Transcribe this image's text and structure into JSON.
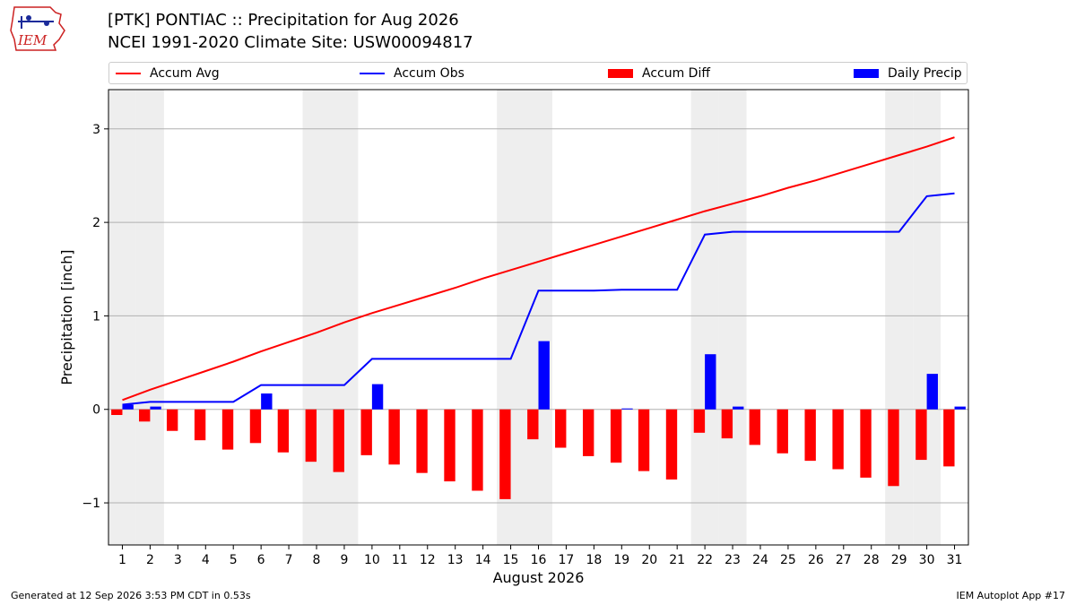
{
  "header": {
    "logo_text": "IEM",
    "title_line1": "[PTK] PONTIAC :: Precipitation for Aug 2026",
    "title_line2": "NCEI 1991-2020 Climate Site: USW00094817"
  },
  "footer": {
    "left": "Generated at 12 Sep 2026 3:53 PM CDT in 0.53s",
    "right": "IEM Autoplot App #17"
  },
  "colors": {
    "accum_avg": "#ff0000",
    "accum_obs": "#0000ff",
    "accum_diff": "#ff0000",
    "daily_precip": "#0000ff",
    "weekend_band": "#eeeeee",
    "grid": "#b0b0b0"
  },
  "chart_data": {
    "type": "bar",
    "xlabel": "August 2026",
    "ylabel": "Precipitation [inch]",
    "xlim": [
      0.5,
      31.5
    ],
    "ylim": [
      -1.45,
      3.42
    ],
    "yticks": [
      -1,
      0,
      1,
      2,
      3
    ],
    "ytick_labels": [
      "−1",
      "0",
      "1",
      "2",
      "3"
    ],
    "grid": "horizontal",
    "legend_position": "top",
    "x": [
      1,
      2,
      3,
      4,
      5,
      6,
      7,
      8,
      9,
      10,
      11,
      12,
      13,
      14,
      15,
      16,
      17,
      18,
      19,
      20,
      21,
      22,
      23,
      24,
      25,
      26,
      27,
      28,
      29,
      30,
      31
    ],
    "shaded_weekend_days": [
      1,
      2,
      8,
      9,
      15,
      16,
      22,
      23,
      29,
      30
    ],
    "series": [
      {
        "name": "Accum Avg",
        "kind": "line",
        "values": [
          0.1,
          0.21,
          0.31,
          0.41,
          0.51,
          0.62,
          0.72,
          0.82,
          0.93,
          1.03,
          1.12,
          1.21,
          1.3,
          1.4,
          1.49,
          1.58,
          1.67,
          1.76,
          1.85,
          1.94,
          2.03,
          2.12,
          2.2,
          2.28,
          2.37,
          2.45,
          2.54,
          2.63,
          2.72,
          2.81,
          2.91
        ]
      },
      {
        "name": "Accum Obs",
        "kind": "line",
        "values": [
          0.05,
          0.08,
          0.08,
          0.08,
          0.08,
          0.26,
          0.26,
          0.26,
          0.26,
          0.54,
          0.54,
          0.54,
          0.54,
          0.54,
          0.54,
          1.27,
          1.27,
          1.27,
          1.28,
          1.28,
          1.28,
          1.87,
          1.9,
          1.9,
          1.9,
          1.9,
          1.9,
          1.9,
          1.9,
          2.28,
          2.31
        ]
      },
      {
        "name": "Accum Diff",
        "kind": "bar",
        "values": [
          -0.06,
          -0.13,
          -0.23,
          -0.33,
          -0.43,
          -0.36,
          -0.46,
          -0.56,
          -0.67,
          -0.49,
          -0.59,
          -0.68,
          -0.77,
          -0.87,
          -0.96,
          -0.32,
          -0.41,
          -0.5,
          -0.57,
          -0.66,
          -0.75,
          -0.25,
          -0.31,
          -0.38,
          -0.47,
          -0.55,
          -0.64,
          -0.73,
          -0.82,
          -0.54,
          -0.61
        ]
      },
      {
        "name": "Daily Precip",
        "kind": "bar",
        "values": [
          0.05,
          0.03,
          0,
          0,
          0,
          0.17,
          0,
          0,
          0,
          0.27,
          0,
          0,
          0,
          0,
          0,
          0.73,
          0,
          0,
          0.01,
          0,
          0,
          0.59,
          0.03,
          0,
          0,
          0,
          0,
          0,
          0,
          0.38,
          0.03
        ]
      }
    ]
  }
}
